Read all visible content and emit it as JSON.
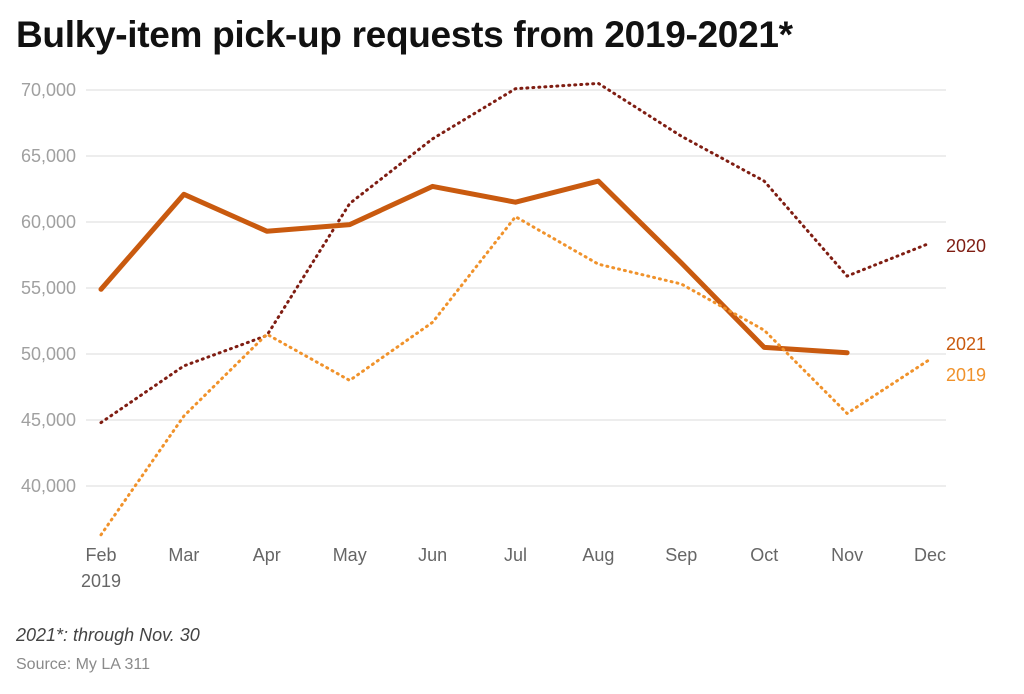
{
  "title": "Bulky-item pick-up requests from 2019-2021*",
  "note": "2021*: through Nov. 30",
  "source": "Source: My LA 311",
  "colors": {
    "2019": "#f0922b",
    "2020": "#7f1d12",
    "2021": "#c95a0f",
    "grid": "#e2e2e2"
  },
  "chart_data": {
    "type": "line",
    "x": [
      "Feb",
      "Mar",
      "Apr",
      "May",
      "Jun",
      "Jul",
      "Aug",
      "Sep",
      "Oct",
      "Nov",
      "Dec"
    ],
    "x_sublabel": "2019",
    "ylim": [
      36000,
      70500
    ],
    "yticks": [
      40000,
      45000,
      50000,
      55000,
      60000,
      65000,
      70000
    ],
    "ytick_labels": [
      "40,000",
      "45,000",
      "50,000",
      "55,000",
      "60,000",
      "65,000",
      "70,000"
    ],
    "grid": true,
    "series": [
      {
        "name": "2020",
        "style": "dotted",
        "color": "#7f1d12",
        "values": [
          44800,
          49100,
          51400,
          61400,
          66300,
          70100,
          70500,
          66500,
          63100,
          55900,
          58400
        ]
      },
      {
        "name": "2021",
        "style": "solid",
        "color": "#c95a0f",
        "values": [
          54900,
          62100,
          59300,
          59800,
          62700,
          61500,
          63100,
          56900,
          50500,
          50100,
          null
        ]
      },
      {
        "name": "2019",
        "style": "dotted",
        "color": "#f0922b",
        "values": [
          36300,
          45300,
          51500,
          48000,
          52400,
          60400,
          56800,
          55300,
          51800,
          45500,
          49600
        ]
      }
    ]
  }
}
